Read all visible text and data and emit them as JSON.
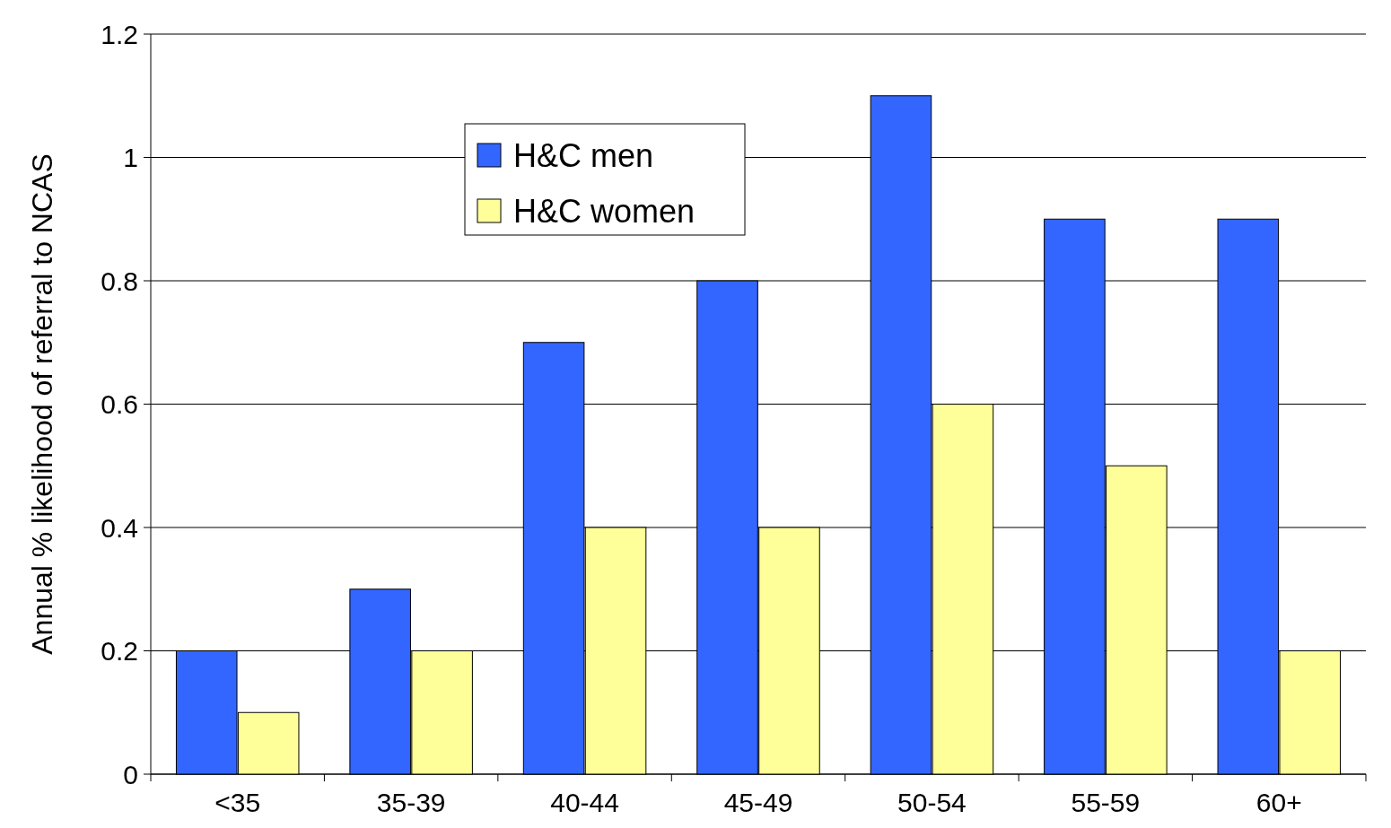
{
  "chart_data": {
    "type": "bar",
    "ylabel": "Annual % likelihood of referral to NCAS",
    "categories": [
      "<35",
      "35-39",
      "40-44",
      "45-49",
      "50-54",
      "55-59",
      "60+"
    ],
    "series": [
      {
        "name": "H&C men",
        "color": "#3366ff",
        "values": [
          0.2,
          0.3,
          0.7,
          0.8,
          1.1,
          0.9,
          0.9
        ]
      },
      {
        "name": "H&C women",
        "color": "#ffff99",
        "values": [
          0.1,
          0.2,
          0.4,
          0.4,
          0.6,
          0.5,
          0.2
        ]
      }
    ],
    "ylim": [
      0,
      1.2
    ],
    "yticks": [
      0,
      0.2,
      0.4,
      0.6,
      0.8,
      1,
      1.2
    ],
    "grid": "y",
    "legend": "top"
  }
}
